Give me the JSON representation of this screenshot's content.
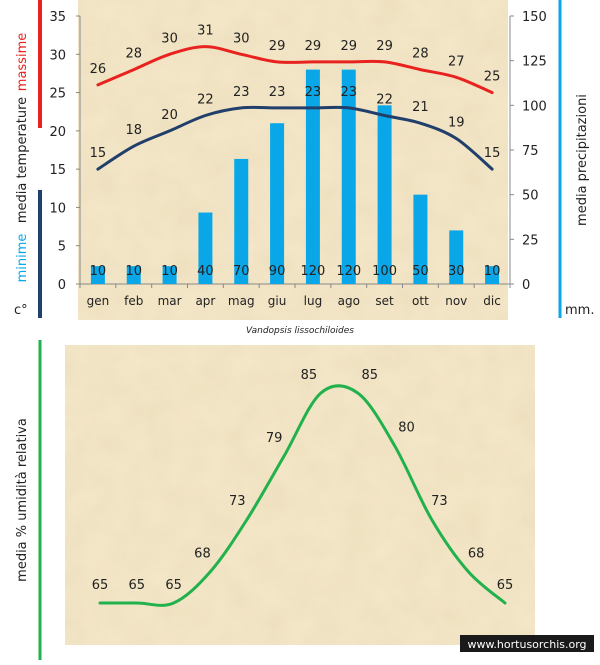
{
  "chart_data": [
    {
      "type": "combo",
      "caption": "Vandopsis lissochiloides",
      "categories": [
        "gen",
        "feb",
        "mar",
        "apr",
        "mag",
        "giu",
        "lug",
        "ago",
        "set",
        "ott",
        "nov",
        "dic"
      ],
      "left_axis": {
        "range": [
          0,
          35
        ],
        "ticks": [
          "0",
          "5",
          "10",
          "15",
          "20",
          "25",
          "30",
          "35"
        ],
        "label_max": "massime",
        "label_mid": "media  temperature",
        "label_min": "minime",
        "unit": "c°"
      },
      "right_axis": {
        "range": [
          0,
          150
        ],
        "ticks": [
          "0",
          "25",
          "50",
          "75",
          "100",
          "125",
          "150"
        ],
        "label": "media  precipitazioni",
        "unit": "mm."
      },
      "series": [
        {
          "name": "massime",
          "kind": "line",
          "axis": "left",
          "color": "#e8231f",
          "values": [
            26,
            28,
            30,
            31,
            30,
            29,
            29,
            29,
            29,
            28,
            27,
            25
          ],
          "labels": [
            "26",
            "28",
            "30",
            "31",
            "30",
            "29",
            "29",
            "29",
            "29",
            "28",
            "27",
            "25"
          ]
        },
        {
          "name": "minime",
          "kind": "line",
          "axis": "left",
          "color": "#213f6b",
          "values": [
            15,
            18,
            20,
            22,
            23,
            23,
            23,
            23,
            22,
            21,
            19,
            15
          ],
          "labels": [
            "15",
            "18",
            "20",
            "22",
            "23",
            "23",
            "23",
            "23",
            "22",
            "21",
            "19",
            "15"
          ]
        },
        {
          "name": "precipitazioni",
          "kind": "bar",
          "axis": "right",
          "color": "#0aa7e8",
          "values": [
            10,
            10,
            10,
            40,
            70,
            90,
            120,
            120,
            100,
            50,
            30,
            10
          ],
          "labels": [
            "10",
            "10",
            "10",
            "40",
            "70",
            "90",
            "120",
            "120",
            "100",
            "50",
            "30",
            "10"
          ]
        }
      ]
    },
    {
      "type": "line",
      "ylabel": "media %  umidità relativa",
      "color": "#22b14c",
      "values": [
        65,
        65,
        65,
        68,
        73,
        79,
        85,
        85,
        80,
        73,
        68,
        65
      ],
      "labels": [
        "65",
        "65",
        "65",
        "68",
        "73",
        "79",
        "85",
        "85",
        "80",
        "73",
        "68",
        "65"
      ]
    }
  ],
  "watermark": "www.hortusorchis.org",
  "colors": {
    "paper": "#f5e8c9",
    "paper_dark": "#ecd9b2",
    "max_red": "#e8231f",
    "min_blue": "#213f6b",
    "rain_blue": "#0aa7e8",
    "humidity_green": "#22b14c"
  }
}
